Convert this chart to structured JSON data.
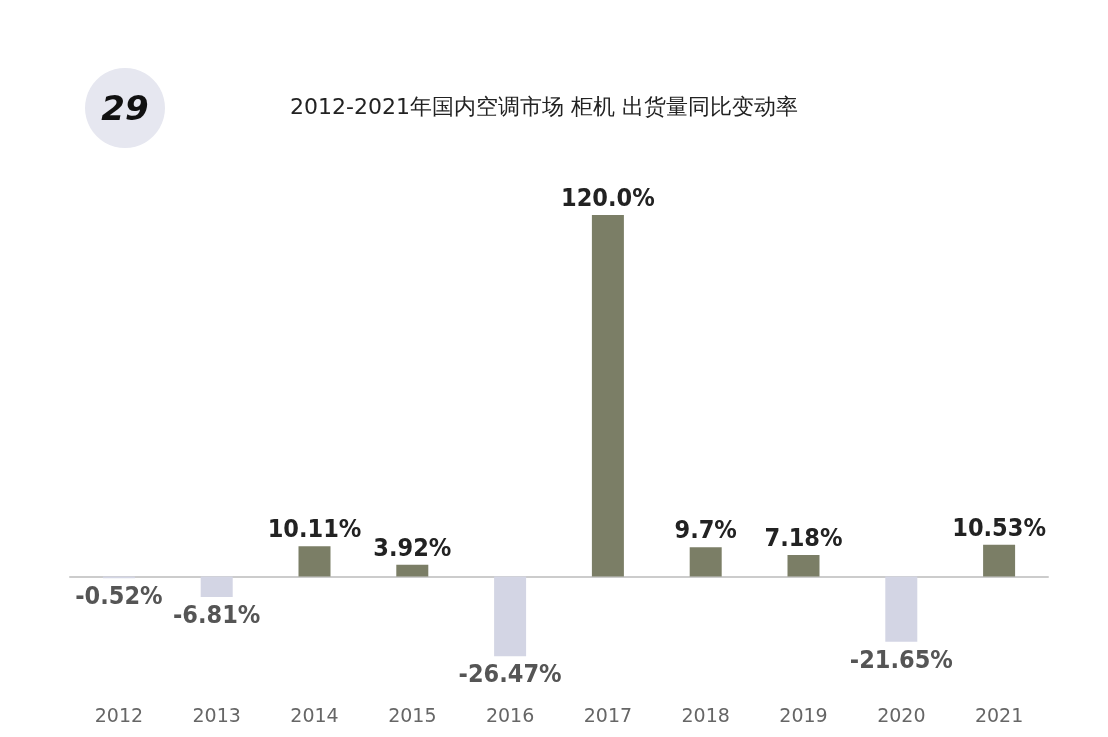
{
  "chart_data": {
    "type": "bar",
    "title": "2012-2021年国内空调市场 柜机 出货量同比变动率",
    "annotations": [
      "29"
    ],
    "categories": [
      "2012",
      "2013",
      "2014",
      "2015",
      "2016",
      "2017",
      "2018",
      "2019",
      "2020",
      "2021"
    ],
    "values": [
      -0.52,
      -6.81,
      10.11,
      3.92,
      -26.47,
      120.0,
      9.7,
      7.18,
      -21.65,
      10.53
    ],
    "colors": [
      "#d3d5e4",
      "#d3d5e4",
      "#7b7e66",
      "#7b7e66",
      "#d3d5e4",
      "#7b7e66",
      "#7b7e66",
      "#7b7e66",
      "#d3d5e4",
      "#7b7e66"
    ],
    "value_labels": [
      "-0.52%",
      "-6.81%",
      "10.11%",
      "3.92%",
      "-26.47%",
      "120.0%",
      "9.7%",
      "7.18%",
      "-21.65%",
      "10.53%"
    ],
    "grid": false
  }
}
